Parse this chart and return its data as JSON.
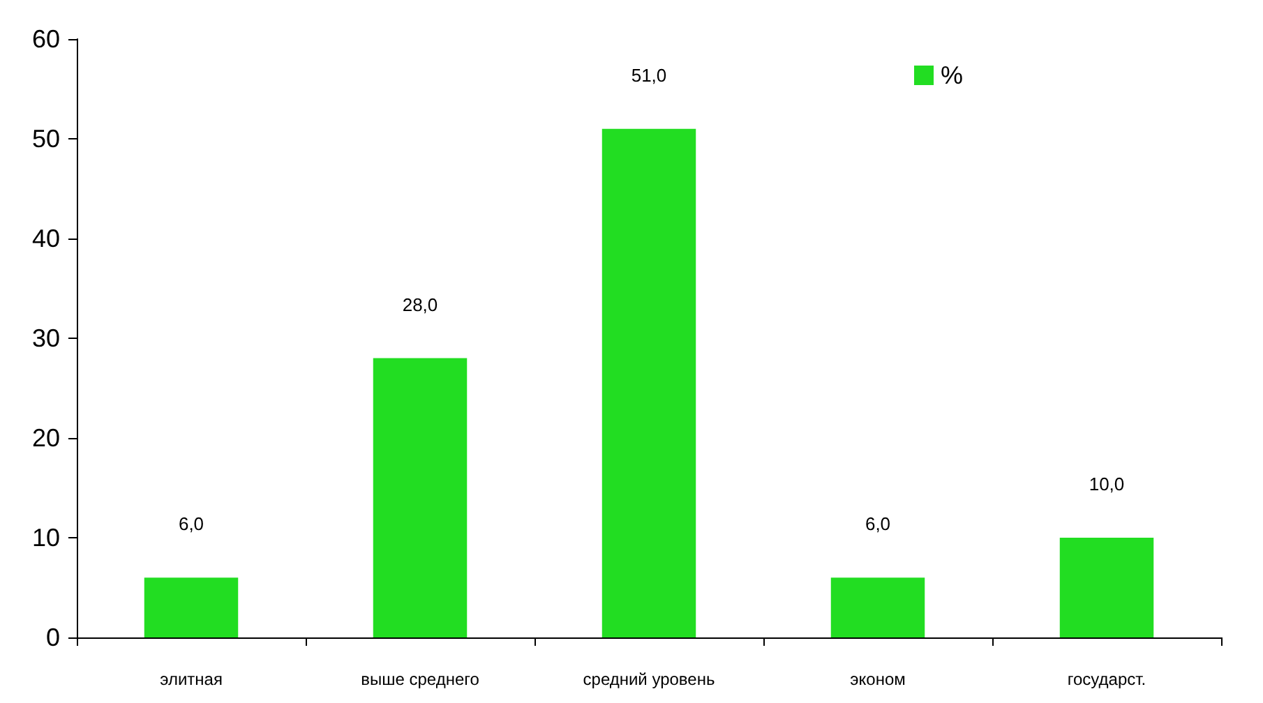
{
  "chart_data": {
    "type": "bar",
    "categories": [
      "элитная",
      "выше среднего",
      "средний уровень",
      "эконом",
      "государст."
    ],
    "series": [
      {
        "name": "%",
        "color": "#22dd22",
        "values": [
          6,
          28,
          51,
          6,
          10
        ],
        "value_labels": [
          "6,0",
          "28,0",
          "51,0",
          "6,0",
          "10,0"
        ]
      }
    ],
    "ylim": [
      0,
      60
    ],
    "yticks": [
      0,
      10,
      20,
      30,
      40,
      50,
      60
    ],
    "grid": false,
    "legend": "top right"
  }
}
